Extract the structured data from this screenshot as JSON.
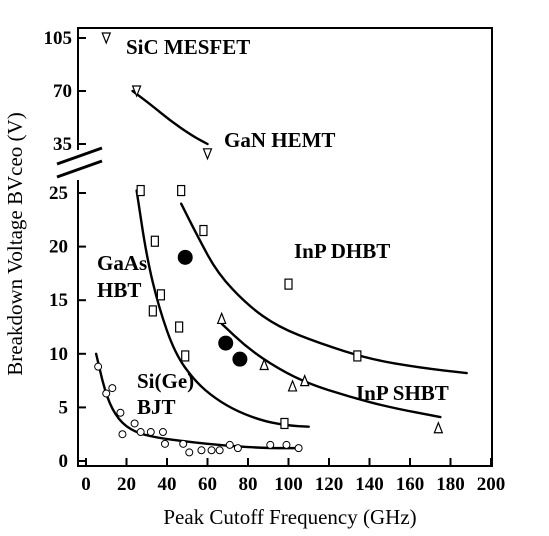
{
  "chart_data": {
    "type": "scatter",
    "xlabel": "Peak Cutoff Frequency (GHz)",
    "ylabel": "Breakdown Voltage BVceo (V)",
    "xlim": [
      0,
      200
    ],
    "x_ticks": [
      "0",
      "20",
      "40",
      "60",
      "80",
      "100",
      "120",
      "140",
      "160",
      "180",
      "200"
    ],
    "y_ticks_lower": [
      "0",
      "5",
      "10",
      "15",
      "20",
      "25"
    ],
    "y_ticks_upper": [
      "35",
      "70",
      "105"
    ],
    "y_axis_break": true,
    "annotations": {
      "sic": "SiC MESFET",
      "gan": "GaN HEMT",
      "inp_dhbt": "InP DHBT",
      "gaas_line1": "GaAs",
      "gaas_line2": "HBT",
      "sige_line1": "Si(Ge)",
      "sige_line2": "BJT",
      "inp_shbt": "InP SHBT"
    },
    "series": [
      {
        "key": "wide_bandgap",
        "marker": "triangle-down",
        "points": [
          [
            10,
            105
          ],
          [
            25,
            70
          ],
          [
            60,
            33
          ]
        ]
      },
      {
        "key": "gaas_hbt",
        "marker": "square",
        "points": [
          [
            27,
            25.5
          ],
          [
            34,
            20.5
          ],
          [
            33,
            14
          ],
          [
            37,
            15.5
          ],
          [
            46,
            12.5
          ],
          [
            49,
            9.8
          ],
          [
            47,
            25.5
          ],
          [
            58,
            21.5
          ],
          [
            98,
            3.5
          ]
        ]
      },
      {
        "key": "inp_dhbt",
        "marker": "square",
        "points": [
          [
            100,
            16.5
          ],
          [
            134,
            9.8
          ]
        ]
      },
      {
        "key": "inp_shbt",
        "marker": "triangle-up",
        "points": [
          [
            67,
            13.3
          ],
          [
            88,
            9
          ],
          [
            102,
            7
          ],
          [
            108,
            7.5
          ],
          [
            174,
            3.1
          ]
        ]
      },
      {
        "key": "highlight",
        "marker": "filled-circle",
        "points": [
          [
            49,
            19
          ],
          [
            69,
            11
          ],
          [
            76,
            9.5
          ]
        ]
      },
      {
        "key": "si_bjt",
        "marker": "circle",
        "points": [
          [
            6,
            8.8
          ],
          [
            10,
            6.3
          ],
          [
            13,
            6.8
          ],
          [
            17,
            4.5
          ],
          [
            18,
            2.5
          ],
          [
            24,
            3.5
          ],
          [
            27,
            2.7
          ],
          [
            32,
            2.7
          ],
          [
            38,
            2.7
          ],
          [
            39,
            1.6
          ],
          [
            48,
            1.6
          ],
          [
            51,
            0.8
          ],
          [
            57,
            1.0
          ],
          [
            62,
            1.0
          ],
          [
            66,
            1.0
          ],
          [
            71,
            1.5
          ],
          [
            75,
            1.2
          ],
          [
            91,
            1.5
          ],
          [
            99,
            1.5
          ],
          [
            105,
            1.2
          ]
        ]
      }
    ],
    "trend_lines": [
      {
        "key": "wide_bandgap_trend",
        "points": [
          [
            23,
            70
          ],
          [
            32,
            61
          ],
          [
            42,
            50
          ],
          [
            53,
            40
          ],
          [
            60,
            35
          ]
        ]
      },
      {
        "key": "gaas_trend",
        "points": [
          [
            25,
            25.5
          ],
          [
            30,
            19
          ],
          [
            36,
            14.3
          ],
          [
            44,
            10
          ],
          [
            54,
            7.4
          ],
          [
            64,
            5.8
          ],
          [
            75,
            4.6
          ],
          [
            88,
            3.7
          ],
          [
            100,
            3.3
          ],
          [
            110,
            3.2
          ]
        ]
      },
      {
        "key": "inp_dhbt_trend",
        "points": [
          [
            47,
            24
          ],
          [
            55,
            21
          ],
          [
            65,
            17.5
          ],
          [
            80,
            14.5
          ],
          [
            95,
            12.5
          ],
          [
            115,
            11
          ],
          [
            140,
            9.5
          ],
          [
            165,
            8.7
          ],
          [
            188,
            8.2
          ]
        ]
      },
      {
        "key": "inp_shbt_trend",
        "points": [
          [
            67,
            12.8
          ],
          [
            80,
            10.5
          ],
          [
            95,
            8.6
          ],
          [
            110,
            7.2
          ],
          [
            130,
            6
          ],
          [
            150,
            5
          ],
          [
            175,
            4.1
          ]
        ]
      },
      {
        "key": "si_bjt_trend",
        "points": [
          [
            5,
            10
          ],
          [
            10,
            6
          ],
          [
            16,
            3.8
          ],
          [
            24,
            2.7
          ],
          [
            34,
            2.2
          ],
          [
            50,
            1.8
          ],
          [
            70,
            1.4
          ],
          [
            90,
            1.2
          ],
          [
            105,
            1.2
          ]
        ]
      }
    ]
  }
}
